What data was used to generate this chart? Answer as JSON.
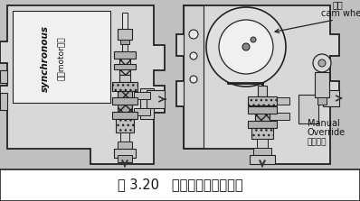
{
  "bg_color": "#c8c8c8",
  "caption_bg": "#ffffff",
  "caption_text": "图 3.20   电机驱动自动排水器",
  "caption_fontsize": 10.5,
  "label_top_cn": "凸轮",
  "label_top_en": "cam whee",
  "label_manual_en1": "Manual",
  "label_manual_en2": "Override",
  "label_manual_cn": "手動開關",
  "label_sync_en": "synchronous",
  "label_sync_cn": "同步motor驱动",
  "fig_width": 3.98,
  "fig_height": 2.23,
  "dpi": 100
}
